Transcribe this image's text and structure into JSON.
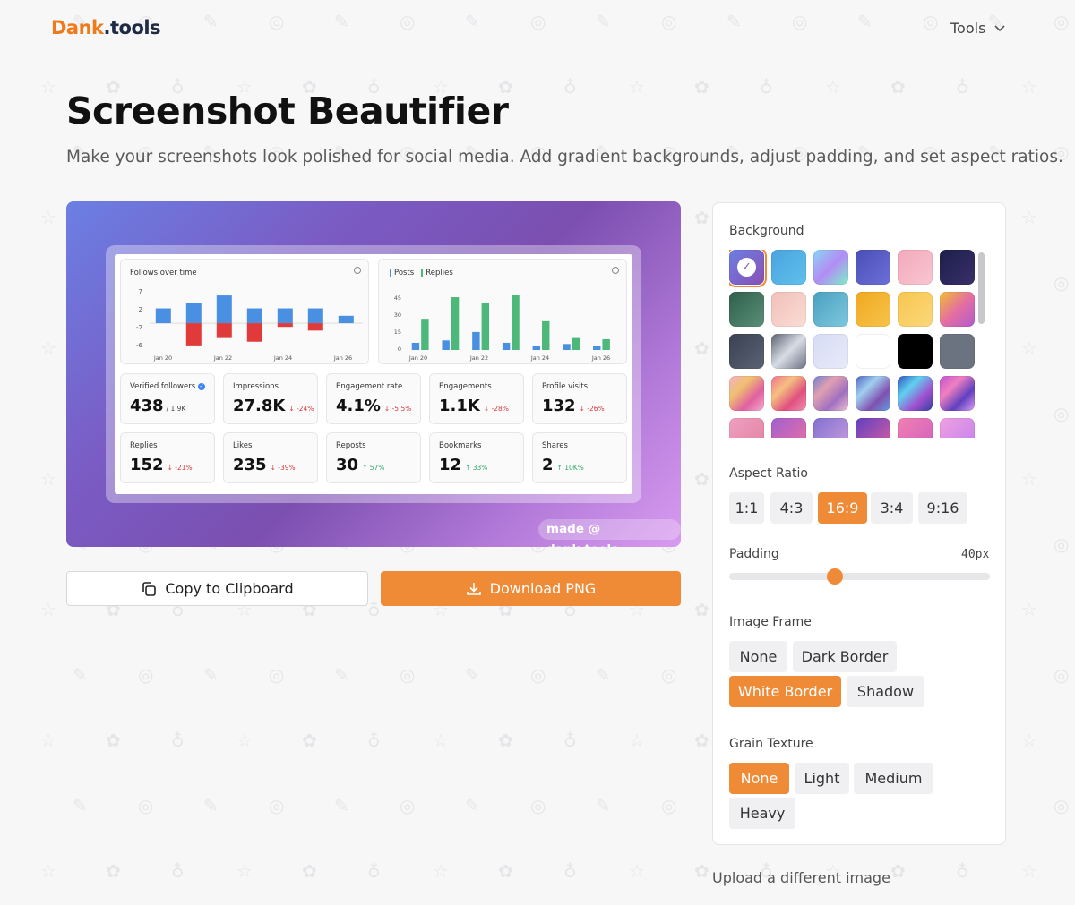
{
  "header": {
    "logo_part1": "Dank",
    "logo_part2": ".tools",
    "tools_label": "Tools"
  },
  "page": {
    "title": "Screenshot Beautifier",
    "subtitle": "Make your screenshots look polished for social media. Add gradient backgrounds, adjust padding, and set aspect ratios."
  },
  "preview": {
    "watermark": "made @ dank.tools",
    "follows_chart": {
      "title": "Follows over time",
      "y_ticks": [
        "7",
        "2",
        "-2",
        "-6"
      ],
      "x_ticks": [
        "Jan 20",
        "Jan 22",
        "Jan 24",
        "Jan 26"
      ],
      "positive": [
        4,
        5.5,
        7.5,
        4,
        4,
        4,
        2
      ],
      "negative": [
        0,
        -6,
        -4,
        -5,
        -1,
        -2,
        0
      ]
    },
    "posts_chart": {
      "legend": [
        "Posts",
        "Replies"
      ],
      "y_ticks": [
        "45",
        "30",
        "15",
        "0"
      ],
      "x_ticks": [
        "Jan 20",
        "Jan 22",
        "Jan 24",
        "Jan 26"
      ],
      "posts": [
        6,
        8,
        15,
        6,
        3,
        5,
        3
      ],
      "replies": [
        26,
        44,
        39,
        46,
        24,
        10,
        9
      ]
    },
    "stats": [
      {
        "label": "Verified followers",
        "value": "438",
        "sub": "/ 1.9K",
        "change": "",
        "dir": "",
        "verified": true
      },
      {
        "label": "Impressions",
        "value": "27.8K",
        "sub": "",
        "change": "↓ -24%",
        "dir": "down"
      },
      {
        "label": "Engagement rate",
        "value": "4.1%",
        "sub": "",
        "change": "↓ -5.5%",
        "dir": "down"
      },
      {
        "label": "Engagements",
        "value": "1.1K",
        "sub": "",
        "change": "↓ -28%",
        "dir": "down"
      },
      {
        "label": "Profile visits",
        "value": "132",
        "sub": "",
        "change": "↓ -26%",
        "dir": "down"
      },
      {
        "label": "Replies",
        "value": "152",
        "sub": "",
        "change": "↓ -21%",
        "dir": "down"
      },
      {
        "label": "Likes",
        "value": "235",
        "sub": "",
        "change": "↓ -39%",
        "dir": "down"
      },
      {
        "label": "Reposts",
        "value": "30",
        "sub": "",
        "change": "↑ 57%",
        "dir": "up"
      },
      {
        "label": "Bookmarks",
        "value": "12",
        "sub": "",
        "change": "↑ 33%",
        "dir": "up"
      },
      {
        "label": "Shares",
        "value": "2",
        "sub": "",
        "change": "↑ 10K%",
        "dir": "up"
      }
    ]
  },
  "actions": {
    "copy_label": "Copy to Clipboard",
    "download_label": "Download PNG"
  },
  "settings": {
    "background_label": "Background",
    "swatches": [
      "linear-gradient(135deg,#6b7fe3,#8a4fb5)",
      "linear-gradient(135deg,#4aa3df,#5fc0ec)",
      "linear-gradient(135deg,#8ad6f5,#b28cf5,#7cf0c8)",
      "linear-gradient(135deg,#4a4fb5,#6b6fd8)",
      "linear-gradient(135deg,#f3a9bb,#f8c5d0)",
      "linear-gradient(135deg,#1c1f4a,#3a2f6b)",
      "linear-gradient(135deg,#2f5f4c,#5a8f78)",
      "linear-gradient(135deg,#f0c0b8,#fadcd6)",
      "linear-gradient(135deg,#4aa0c0,#7fc8e0)",
      "linear-gradient(135deg,#f0a820,#f7c44a)",
      "linear-gradient(135deg,#f7c650,#fbd77a)",
      "linear-gradient(135deg,#f0c030,#e56fa0,#b05ad0)",
      "linear-gradient(135deg,#3a4152,#5a6274)",
      "linear-gradient(135deg,#5a6070,#d8dde5,#6a7080)",
      "linear-gradient(135deg,#d6dcf5,#e8eaf8)",
      "#ffffff",
      "#000000",
      "#6b7280",
      "linear-gradient(135deg,#f5b0c8,#f0c070,#e060a0,#f5b0d0)",
      "linear-gradient(135deg,#f07090,#f5c080,#e05080,#f090b0)",
      "linear-gradient(135deg,#7080d0,#e0a0b0,#a070c0,#f0c0d0)",
      "linear-gradient(135deg,#5060c0,#a0d0f0,#8050b0,#60a0e0)",
      "linear-gradient(135deg,#3050c0,#60d0f0,#a050d0,#3040a0)",
      "linear-gradient(135deg,#c050d0,#f080c0,#6040c0,#e0a0f0)",
      "linear-gradient(135deg,#f0a0c0,#e080a0)",
      "linear-gradient(135deg,#a060d0,#f070a0)",
      "linear-gradient(135deg,#8070d0,#d0a0e0)",
      "linear-gradient(135deg,#6040c0,#e060a0)",
      "linear-gradient(135deg,#f080b0,#d060c0)",
      "linear-gradient(135deg,#f0a0e0,#c080f0)"
    ],
    "selected_swatch": 0,
    "aspect_label": "Aspect Ratio",
    "aspect_options": [
      "1:1",
      "4:3",
      "16:9",
      "3:4",
      "9:16"
    ],
    "aspect_selected": 2,
    "padding_label": "Padding",
    "padding_value": "40px",
    "padding_fraction": 0.405,
    "frame_label": "Image Frame",
    "frame_options": [
      "None",
      "Dark Border",
      "White Border",
      "Shadow"
    ],
    "frame_selected": 2,
    "grain_label": "Grain Texture",
    "grain_options": [
      "None",
      "Light",
      "Medium",
      "Heavy"
    ],
    "grain_selected": 0
  },
  "upload_label": "Upload a different image",
  "colors": {
    "accent": "#ef8a36",
    "chart_blue": "#4a90e2",
    "chart_red": "#e03a3a",
    "chart_green": "#4cb87a"
  }
}
